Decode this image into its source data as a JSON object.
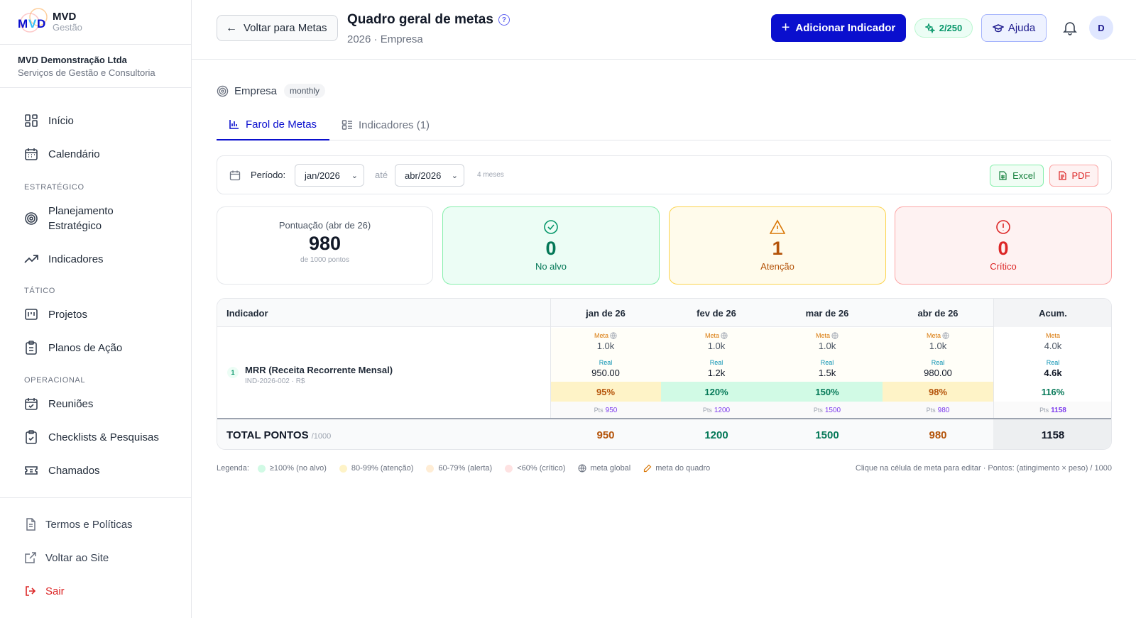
{
  "brand": {
    "name": "MVD",
    "sub": "Gestão"
  },
  "company": {
    "name": "MVD Demonstração Ltda",
    "sub": "Serviços de Gestão e Consultoria"
  },
  "nav": {
    "inicio": "Início",
    "calendario": "Calendário",
    "section_estrategico": "ESTRATÉGICO",
    "planejamento_1": "Planejamento",
    "planejamento_2": "Estratégico",
    "indicadores": "Indicadores",
    "section_tatico": "TÁTICO",
    "projetos": "Projetos",
    "planos": "Planos de Ação",
    "section_operacional": "OPERACIONAL",
    "reunioes": "Reuniões",
    "checklists": "Checklists & Pesquisas",
    "chamados": "Chamados"
  },
  "bottom_nav": {
    "termos": "Termos e Políticas",
    "voltar_site": "Voltar ao Site",
    "sair": "Sair"
  },
  "header": {
    "back_label": "Voltar para Metas",
    "title": "Quadro geral de metas",
    "help_glyph": "?",
    "subtitle": "2026 · Empresa",
    "add_label": "Adicionar Indicador",
    "quota": "2/250",
    "help_label": "Ajuda",
    "avatar": "D"
  },
  "scope": {
    "label": "Empresa",
    "tag": "monthly"
  },
  "tabs": {
    "farol": "Farol de Metas",
    "indicadores": "Indicadores (1)"
  },
  "filter": {
    "label": "Período:",
    "from": "jan/2026",
    "ate": "até",
    "to": "abr/2026",
    "months": "4 meses",
    "excel": "Excel",
    "pdf": "PDF"
  },
  "cards": {
    "score_title": "Pontuação (abr de 26)",
    "score_value": "980",
    "score_sub": "de 1000 pontos",
    "ok_count": "0",
    "ok_label": "No alvo",
    "warn_count": "1",
    "warn_label": "Atenção",
    "crit_count": "0",
    "crit_label": "Crítico"
  },
  "table": {
    "headers": [
      "Indicador",
      "jan de 26",
      "fev de 26",
      "mar de 26",
      "abr de 26",
      "Acum."
    ],
    "indicator": {
      "num": "1",
      "name": "MRR (Receita Recorrente Mensal)",
      "code": "IND-2026-002 · R$"
    },
    "meta_label": "Meta",
    "real_label": "Real",
    "pts_label": "Pts",
    "months": [
      {
        "meta": "1.0k",
        "real": "950.00",
        "pct": "95%",
        "pts": "950",
        "status": "amber"
      },
      {
        "meta": "1.0k",
        "real": "1.2k",
        "pct": "120%",
        "pts": "1200",
        "status": "green"
      },
      {
        "meta": "1.0k",
        "real": "1.5k",
        "pct": "150%",
        "pts": "1500",
        "status": "green"
      },
      {
        "meta": "1.0k",
        "real": "980.00",
        "pct": "98%",
        "pts": "980",
        "status": "amber"
      }
    ],
    "acum": {
      "meta": "4.0k",
      "real": "4.6k",
      "pct": "116%",
      "pts": "1158"
    },
    "total_label": "TOTAL PONTOS",
    "total_sub": "/1000",
    "totals": [
      "950",
      "1200",
      "1500",
      "980"
    ],
    "total_acum": "1158"
  },
  "legend": {
    "title": "Legenda:",
    "l1": "≥100% (no alvo)",
    "l2": "80-99% (atenção)",
    "l3": "60-79% (alerta)",
    "l4": "<60% (crítico)",
    "l5": "meta global",
    "l6": "meta do quadro",
    "hint": "Clique na célula de meta para editar · Pontos: (atingimento × peso) / 1000"
  }
}
